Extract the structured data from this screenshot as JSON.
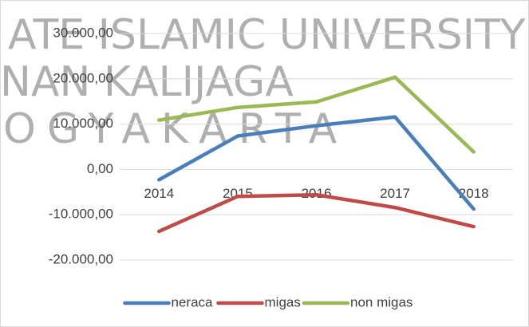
{
  "chart_data": {
    "type": "line",
    "watermark": [
      "ATE ISLAMIC UNIVERSITY",
      "NAN KALIJAGA",
      "OGYAKARTA"
    ],
    "categories": [
      "2014",
      "2015",
      "2016",
      "2017",
      "2018"
    ],
    "series": [
      {
        "name": "neraca",
        "color": "#4a7ebb",
        "values": [
          -2280,
          7370,
          9650,
          11580,
          -8770
        ]
      },
      {
        "name": "migas",
        "color": "#be4b48",
        "values": [
          -13680,
          -5960,
          -5610,
          -8420,
          -12630
        ]
      },
      {
        "name": "non migas",
        "color": "#98b954",
        "values": [
          10880,
          13680,
          14910,
          20350,
          3860
        ]
      }
    ],
    "ylim": [
      -20000,
      30000
    ],
    "yticks": [
      {
        "value": -20000,
        "label": "-20.000,00"
      },
      {
        "value": -10000,
        "label": "-10.000,00"
      },
      {
        "value": 0,
        "label": "0,00"
      },
      {
        "value": 10000,
        "label": "10.000,00"
      },
      {
        "value": 20000,
        "label": "20.000,00"
      },
      {
        "value": 30000,
        "label": "30.000,00"
      }
    ],
    "grid": true,
    "legend": "bottom"
  }
}
